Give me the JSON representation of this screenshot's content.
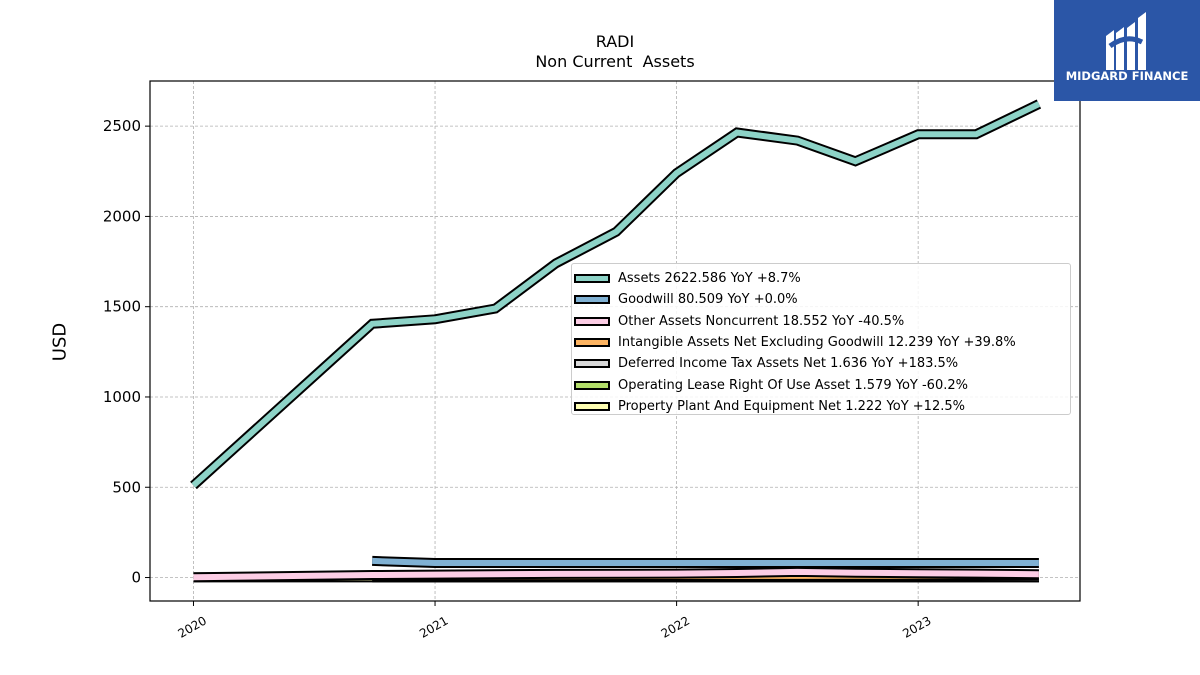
{
  "chart_data": {
    "type": "line",
    "title": "RADI",
    "subtitle": "Non Current  Assets",
    "ylabel": "USD",
    "xlabel": "",
    "ylim": [
      -130,
      2750
    ],
    "xlim": [
      2019.82,
      2023.67
    ],
    "yticks": [
      0,
      500,
      1000,
      1500,
      2000,
      2500
    ],
    "xticks": [
      2020,
      2021,
      2022,
      2023
    ],
    "xtick_labels": [
      "2020",
      "2021",
      "2022",
      "2023"
    ],
    "grid": true,
    "legend_position": "center-right",
    "series": [
      {
        "name": "Assets",
        "legend": "Assets  2622.586 YoY +8.7%",
        "color": "#8dd3c7",
        "x": [
          2020.0,
          2020.74,
          2021.0,
          2021.25,
          2021.5,
          2021.75,
          2022.0,
          2022.25,
          2022.5,
          2022.74,
          2023.0,
          2023.24,
          2023.5
        ],
        "y": [
          510,
          1405,
          1430,
          1490,
          1740,
          1915,
          2240,
          2465,
          2420,
          2305,
          2455,
          2455,
          2622.586
        ]
      },
      {
        "name": "Goodwill",
        "legend": "Goodwill  80.509 YoY +0.0%",
        "color": "#80b1d3",
        "x": [
          2020.74,
          2021.0,
          2021.25,
          2021.5,
          2021.75,
          2022.0,
          2022.25,
          2022.5,
          2022.74,
          2023.0,
          2023.24,
          2023.5
        ],
        "y": [
          92,
          80.509,
          80.509,
          80.509,
          80.509,
          80.509,
          80.509,
          80.509,
          80.509,
          80.509,
          80.509,
          80.509
        ]
      },
      {
        "name": "Other Assets Noncurrent",
        "legend": "Other Assets Noncurrent  18.552 YoY -40.5%",
        "color": "#fccde5",
        "x": [
          2020.0,
          2020.74,
          2021.0,
          2021.5,
          2022.0,
          2022.25,
          2022.5,
          2022.74,
          2023.0,
          2023.24,
          2023.5
        ],
        "y": [
          1.5,
          14,
          16,
          20,
          22,
          25,
          31,
          26,
          24,
          22,
          18.552
        ]
      },
      {
        "name": "Intangible Assets Net Excluding Goodwill",
        "legend": "Intangible Assets Net Excluding Goodwill  12.239 YoY +39.8%",
        "color": "#fdb462",
        "x": [
          2020.74,
          2021.0,
          2021.5,
          2022.0,
          2022.5,
          2022.74,
          2023.0,
          2023.24,
          2023.5
        ],
        "y": [
          7,
          7.5,
          8,
          8.5,
          8.8,
          9.5,
          10.5,
          11.2,
          12.239
        ]
      },
      {
        "name": "Deferred Income Tax Assets Net",
        "legend": "Deferred Income Tax Assets Net  1.636 YoY +183.5%",
        "color": "#d9d9d9",
        "x": [
          2020.74,
          2021.0,
          2021.5,
          2022.0,
          2022.5,
          2023.0,
          2023.5
        ],
        "y": [
          0.5,
          0.5,
          0.6,
          0.6,
          0.6,
          0.8,
          1.636
        ]
      },
      {
        "name": "Operating Lease Right Of Use Asset",
        "legend": "Operating Lease Right Of Use Asset  1.579 YoY -60.2%",
        "color": "#b3de69",
        "x": [
          2020.74,
          2021.0,
          2021.5,
          2022.0,
          2022.5,
          2023.0,
          2023.5
        ],
        "y": [
          5,
          4.8,
          4.5,
          4.2,
          3.96,
          2.5,
          1.579
        ]
      },
      {
        "name": "Property Plant And Equipment Net",
        "legend": "Property Plant And Equipment Net  1.222 YoY +12.5%",
        "color": "#ffffb3",
        "x": [
          2020.0,
          2020.74,
          2021.0,
          2021.5,
          2022.0,
          2022.5,
          2023.0,
          2023.5
        ],
        "y": [
          0.6,
          0.8,
          0.9,
          1.0,
          1.05,
          1.09,
          1.15,
          1.222
        ]
      }
    ]
  },
  "logo": {
    "text": "MIDGARD FINANCE",
    "color": "#2b56a7"
  }
}
